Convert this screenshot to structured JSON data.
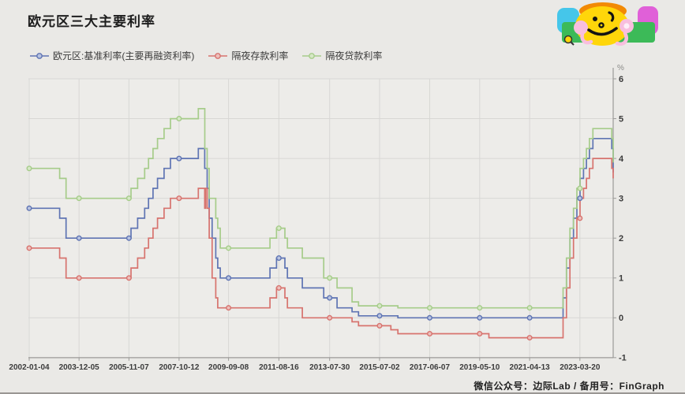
{
  "title": "欧元区三大主要利率",
  "legend": [
    {
      "id": "refi",
      "label": "欧元区:基准利率(主要再融资利率)",
      "color": "#5f74b3",
      "marker_fill": "#b9c4e0"
    },
    {
      "id": "deposit",
      "label": "隔夜存款利率",
      "color": "#d7736e",
      "marker_fill": "#edc0bc"
    },
    {
      "id": "marginal",
      "label": "隔夜贷款利率",
      "color": "#a6cc8a",
      "marker_fill": "#d6e8c6"
    }
  ],
  "footer": {
    "label": "微信公众号：边际Lab / 备用号：FinGraph"
  },
  "logo": {
    "name": "fingraph-mascot-logo",
    "colors": {
      "cyan": "#45c6ea",
      "magenta": "#e060d8",
      "green": "#3cba58",
      "orange": "#f28a05",
      "yellow": "#ffd60a",
      "pink": "#f8bede",
      "ink": "#141414"
    }
  },
  "axis": {
    "unit_label": "%",
    "grid_color": "#d8d7d5",
    "axis_color": "#9b9a98",
    "plot_bg": "#edece9",
    "tick_text_color": "#3b3b3b"
  },
  "chart_data": {
    "type": "line",
    "step": true,
    "title": "欧元区三大主要利率",
    "ylabel": "%",
    "ylim": [
      -1,
      6
    ],
    "yticks": [
      6,
      5,
      4,
      3,
      2,
      1,
      0,
      -1
    ],
    "x_tick_labels": [
      "2002-01-04",
      "2003-12-05",
      "2005-11-07",
      "2007-10-12",
      "2009-09-08",
      "2011-08-16",
      "2013-07-30",
      "2015-07-02",
      "2017-06-07",
      "2019-05-10",
      "2021-04-13",
      "2023-03-20"
    ],
    "legend_position": "top-left",
    "grid": true,
    "series": [
      {
        "name": "欧元区:基准利率(主要再融资利率)",
        "color": "#5f74b3",
        "marker_fill": "#b9c4e0",
        "points": [
          [
            "2002-01-04",
            2.75
          ],
          [
            "2003-03-06",
            2.5
          ],
          [
            "2003-06-05",
            2.0
          ],
          [
            "2005-12-06",
            2.25
          ],
          [
            "2006-03-08",
            2.5
          ],
          [
            "2006-06-15",
            2.75
          ],
          [
            "2006-08-09",
            3.0
          ],
          [
            "2006-10-11",
            3.25
          ],
          [
            "2006-12-13",
            3.5
          ],
          [
            "2007-03-14",
            3.75
          ],
          [
            "2007-06-13",
            4.0
          ],
          [
            "2008-07-09",
            4.25
          ],
          [
            "2008-10-08",
            3.75
          ],
          [
            "2008-11-12",
            3.25
          ],
          [
            "2008-12-10",
            2.5
          ],
          [
            "2009-01-21",
            2.0
          ],
          [
            "2009-03-11",
            1.5
          ],
          [
            "2009-04-08",
            1.25
          ],
          [
            "2009-05-13",
            1.0
          ],
          [
            "2011-04-13",
            1.25
          ],
          [
            "2011-07-13",
            1.5
          ],
          [
            "2011-11-09",
            1.25
          ],
          [
            "2011-12-14",
            1.0
          ],
          [
            "2012-07-11",
            0.75
          ],
          [
            "2013-05-08",
            0.5
          ],
          [
            "2013-11-13",
            0.25
          ],
          [
            "2014-06-11",
            0.15
          ],
          [
            "2014-09-10",
            0.05
          ],
          [
            "2016-03-16",
            0.0
          ],
          [
            "2022-07-27",
            0.5
          ],
          [
            "2022-09-14",
            1.25
          ],
          [
            "2022-11-02",
            2.0
          ],
          [
            "2022-12-21",
            2.5
          ],
          [
            "2023-02-08",
            3.0
          ],
          [
            "2023-03-22",
            3.5
          ],
          [
            "2023-05-10",
            3.75
          ],
          [
            "2023-06-21",
            4.0
          ],
          [
            "2023-08-02",
            4.25
          ],
          [
            "2023-09-20",
            4.5
          ],
          [
            "2024-06-12",
            4.25
          ],
          [
            "2024-08-05",
            3.65
          ]
        ]
      },
      {
        "name": "隔夜存款利率",
        "color": "#d7736e",
        "marker_fill": "#edc0bc",
        "points": [
          [
            "2002-01-04",
            1.75
          ],
          [
            "2003-03-06",
            1.5
          ],
          [
            "2003-06-05",
            1.0
          ],
          [
            "2005-12-06",
            1.25
          ],
          [
            "2006-03-08",
            1.5
          ],
          [
            "2006-06-15",
            1.75
          ],
          [
            "2006-08-09",
            2.0
          ],
          [
            "2006-10-11",
            2.25
          ],
          [
            "2006-12-13",
            2.5
          ],
          [
            "2007-03-14",
            2.75
          ],
          [
            "2007-06-13",
            3.0
          ],
          [
            "2008-07-09",
            3.25
          ],
          [
            "2008-10-08",
            2.75
          ],
          [
            "2008-10-20",
            3.25
          ],
          [
            "2008-11-12",
            2.75
          ],
          [
            "2008-12-10",
            2.0
          ],
          [
            "2009-01-21",
            1.0
          ],
          [
            "2009-03-11",
            0.5
          ],
          [
            "2009-04-08",
            0.25
          ],
          [
            "2011-04-13",
            0.5
          ],
          [
            "2011-07-13",
            0.75
          ],
          [
            "2011-11-09",
            0.5
          ],
          [
            "2011-12-14",
            0.25
          ],
          [
            "2012-07-11",
            0.0
          ],
          [
            "2014-06-11",
            -0.1
          ],
          [
            "2014-09-10",
            -0.2
          ],
          [
            "2015-12-09",
            -0.3
          ],
          [
            "2016-03-16",
            -0.4
          ],
          [
            "2019-09-18",
            -0.5
          ],
          [
            "2022-07-27",
            0.0
          ],
          [
            "2022-09-14",
            0.75
          ],
          [
            "2022-11-02",
            1.5
          ],
          [
            "2022-12-21",
            2.0
          ],
          [
            "2023-02-08",
            2.5
          ],
          [
            "2023-03-22",
            3.0
          ],
          [
            "2023-05-10",
            3.25
          ],
          [
            "2023-06-21",
            3.5
          ],
          [
            "2023-08-02",
            3.75
          ],
          [
            "2023-09-20",
            4.0
          ],
          [
            "2024-06-12",
            3.75
          ],
          [
            "2024-08-05",
            3.5
          ]
        ]
      },
      {
        "name": "隔夜贷款利率",
        "color": "#a6cc8a",
        "marker_fill": "#d6e8c6",
        "points": [
          [
            "2002-01-04",
            3.75
          ],
          [
            "2003-03-06",
            3.5
          ],
          [
            "2003-06-05",
            3.0
          ],
          [
            "2005-12-06",
            3.25
          ],
          [
            "2006-03-08",
            3.5
          ],
          [
            "2006-06-15",
            3.75
          ],
          [
            "2006-08-09",
            4.0
          ],
          [
            "2006-10-11",
            4.25
          ],
          [
            "2006-12-13",
            4.5
          ],
          [
            "2007-03-14",
            4.75
          ],
          [
            "2007-06-13",
            5.0
          ],
          [
            "2008-07-09",
            5.25
          ],
          [
            "2008-10-09",
            4.25
          ],
          [
            "2008-11-12",
            3.75
          ],
          [
            "2008-12-10",
            3.0
          ],
          [
            "2009-03-11",
            2.5
          ],
          [
            "2009-04-08",
            2.25
          ],
          [
            "2009-05-13",
            1.75
          ],
          [
            "2011-04-13",
            2.0
          ],
          [
            "2011-07-13",
            2.25
          ],
          [
            "2011-11-09",
            2.0
          ],
          [
            "2011-12-14",
            1.75
          ],
          [
            "2012-07-11",
            1.5
          ],
          [
            "2013-05-08",
            1.0
          ],
          [
            "2013-11-13",
            0.75
          ],
          [
            "2014-06-11",
            0.4
          ],
          [
            "2014-09-10",
            0.3
          ],
          [
            "2016-03-16",
            0.25
          ],
          [
            "2022-07-27",
            0.75
          ],
          [
            "2022-09-14",
            1.5
          ],
          [
            "2022-11-02",
            2.25
          ],
          [
            "2022-12-21",
            2.75
          ],
          [
            "2023-02-08",
            3.25
          ],
          [
            "2023-03-22",
            3.75
          ],
          [
            "2023-05-10",
            4.0
          ],
          [
            "2023-06-21",
            4.25
          ],
          [
            "2023-08-02",
            4.5
          ],
          [
            "2023-09-20",
            4.75
          ],
          [
            "2024-06-12",
            4.5
          ],
          [
            "2024-08-05",
            3.9
          ]
        ]
      }
    ]
  }
}
